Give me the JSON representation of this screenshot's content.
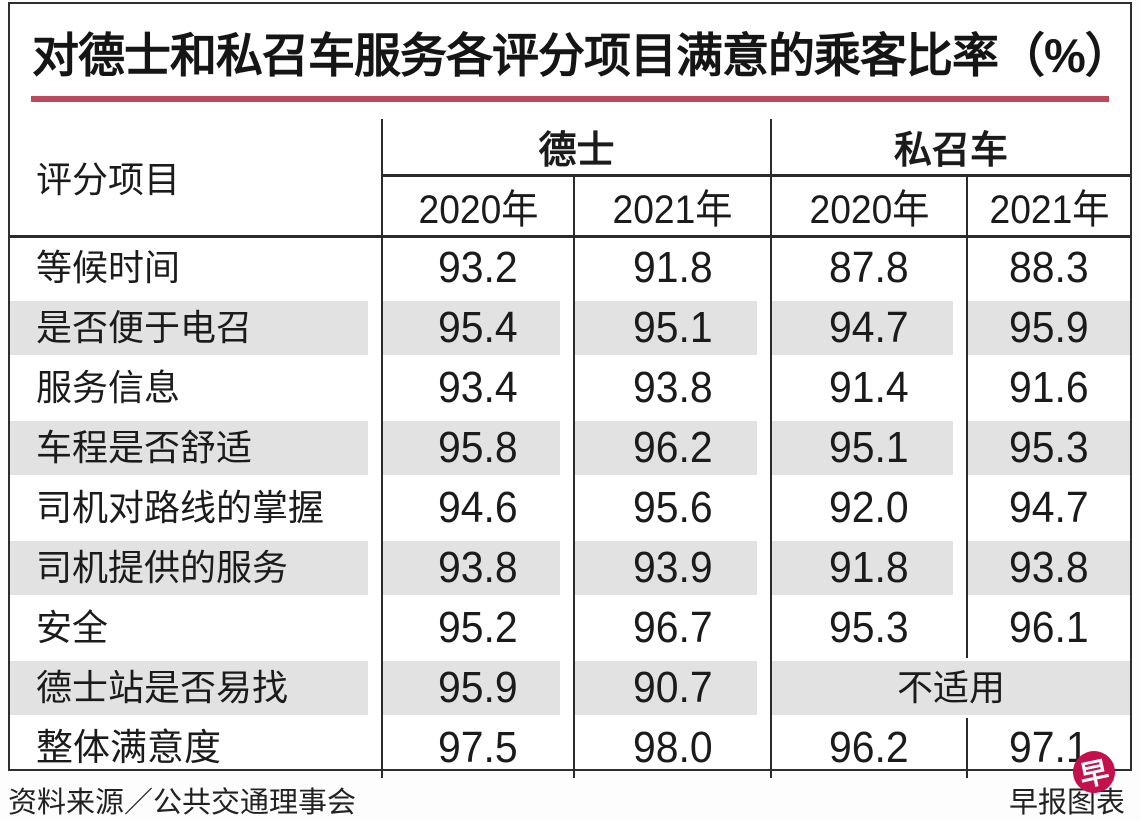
{
  "title": "对德士和私召车服务各评分项目满意的乘客比率（%）",
  "table": {
    "corner_label": "评分项目",
    "groups": [
      {
        "label": "德士",
        "years": [
          "2020年",
          "2021年"
        ]
      },
      {
        "label": "私召车",
        "years": [
          "2020年",
          "2021年"
        ]
      }
    ],
    "rows": [
      {
        "label": "等候时间",
        "values": [
          "93.2",
          "91.8",
          "87.8",
          "88.3"
        ]
      },
      {
        "label": "是否便于电召",
        "values": [
          "95.4",
          "95.1",
          "94.7",
          "95.9"
        ]
      },
      {
        "label": "服务信息",
        "values": [
          "93.4",
          "93.8",
          "91.4",
          "91.6"
        ]
      },
      {
        "label": "车程是否舒适",
        "values": [
          "95.8",
          "96.2",
          "95.1",
          "95.3"
        ]
      },
      {
        "label": "司机对路线的掌握",
        "values": [
          "94.6",
          "95.6",
          "92.0",
          "94.7"
        ]
      },
      {
        "label": "司机提供的服务",
        "values": [
          "93.8",
          "93.9",
          "91.8",
          "93.8"
        ]
      },
      {
        "label": "安全",
        "values": [
          "95.2",
          "96.7",
          "95.3",
          "96.1"
        ]
      },
      {
        "label": "德士站是否易找",
        "values": [
          "95.9",
          "90.7"
        ],
        "note": "不适用"
      },
      {
        "label": "整体满意度",
        "values": [
          "97.5",
          "98.0",
          "96.2",
          "97.1"
        ],
        "bold": true
      }
    ]
  },
  "footer": {
    "source": "资料来源／公共交通理事会",
    "credit": "早报图表",
    "badge_glyph": "早"
  },
  "colors": {
    "accent_rule_red": "#bc4a5c",
    "badge_red": "#c4114d",
    "stripe_gray": "#e2e2e2",
    "border_dark": "#2b2b2b"
  },
  "chart_data": {
    "type": "table",
    "title": "对德士和私召车服务各评分项目满意的乘客比率（%）",
    "column_groups": [
      "德士",
      "私召车"
    ],
    "columns": [
      "评分项目",
      "德士 2020年",
      "德士 2021年",
      "私召车 2020年",
      "私召车 2021年"
    ],
    "rows": [
      [
        "等候时间",
        93.2,
        91.8,
        87.8,
        88.3
      ],
      [
        "是否便于电召",
        95.4,
        95.1,
        94.7,
        95.9
      ],
      [
        "服务信息",
        93.4,
        93.8,
        91.4,
        91.6
      ],
      [
        "车程是否舒适",
        95.8,
        96.2,
        95.1,
        95.3
      ],
      [
        "司机对路线的掌握",
        94.6,
        95.6,
        92.0,
        94.7
      ],
      [
        "司机提供的服务",
        93.8,
        93.9,
        91.8,
        93.8
      ],
      [
        "安全",
        95.2,
        96.7,
        95.3,
        96.1
      ],
      [
        "德士站是否易找",
        95.9,
        90.7,
        "不适用",
        "不适用"
      ],
      [
        "整体满意度",
        97.5,
        98.0,
        96.2,
        97.1
      ]
    ],
    "source": "资料来源／公共交通理事会",
    "credit": "早报图表"
  }
}
